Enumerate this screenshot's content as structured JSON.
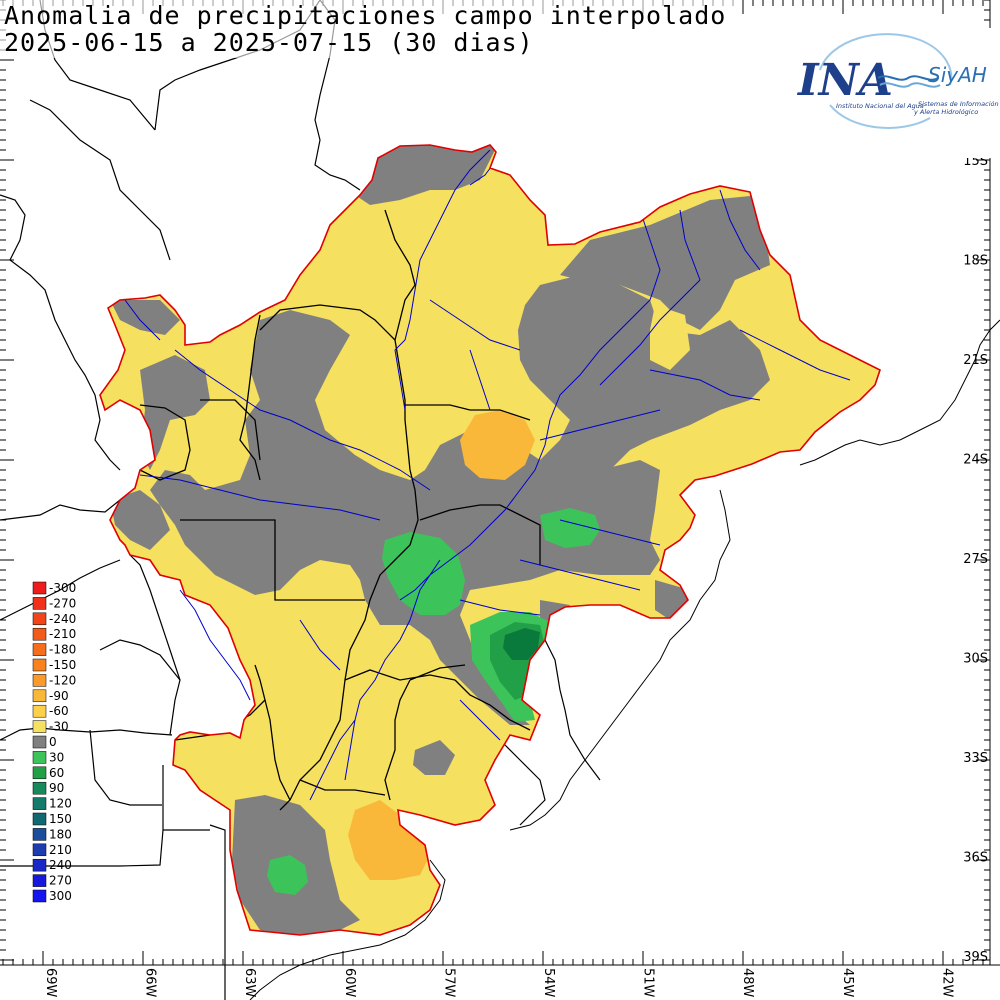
{
  "title": {
    "line1": "Anomalia de precipitaciones campo interpolado",
    "line2": "2025-06-15 a 2025-07-15 (30 dias)"
  },
  "logo": {
    "name": "INA",
    "tagline": "Instituto Nacional del Agua",
    "system": "SiyAH",
    "system_desc_1": "Sistemas de Información",
    "system_desc_2": "y Alerta Hidrológico"
  },
  "axes": {
    "lat_labels": [
      "15S",
      "18S",
      "21S",
      "24S",
      "27S",
      "30S",
      "33S",
      "36S",
      "39S"
    ],
    "lon_labels": [
      "69W",
      "66W",
      "63W",
      "60W",
      "57W",
      "54W",
      "51W",
      "48W",
      "45W",
      "42W"
    ]
  },
  "legend": {
    "entries": [
      {
        "label": "-300",
        "color": "#ee1c1c"
      },
      {
        "label": "-270",
        "color": "#f0301a"
      },
      {
        "label": "-240",
        "color": "#f24418"
      },
      {
        "label": "-210",
        "color": "#f45a18"
      },
      {
        "label": "-180",
        "color": "#f66e1c"
      },
      {
        "label": "-150",
        "color": "#f8821e"
      },
      {
        "label": "-120",
        "color": "#f99a2a"
      },
      {
        "label": "-90",
        "color": "#fab83a"
      },
      {
        "label": "-60",
        "color": "#fcd04a"
      },
      {
        "label": "-30",
        "color": "#f5e060"
      },
      {
        "label": "0",
        "color": "#808080"
      },
      {
        "label": "30",
        "color": "#3cc45a"
      },
      {
        "label": "60",
        "color": "#22a048"
      },
      {
        "label": "90",
        "color": "#168a5a"
      },
      {
        "label": "120",
        "color": "#147a6a"
      },
      {
        "label": "150",
        "color": "#106870"
      },
      {
        "label": "180",
        "color": "#1a4e9a"
      },
      {
        "label": "210",
        "color": "#1c3cb0"
      },
      {
        "label": "240",
        "color": "#1a28c8"
      },
      {
        "label": "270",
        "color": "#1818dc"
      },
      {
        "label": "300",
        "color": "#1414f0"
      }
    ]
  },
  "colors": {
    "near_normal": "#808080",
    "dry_light": "#f5e060",
    "dry_moderate": "#fab83a",
    "wet_light": "#3cc45a",
    "wet_moderate": "#22a048",
    "wet_strong": "#0a7a3c",
    "basin_outline": "#e00000",
    "rivers": "#0000cc",
    "borders": "#000000"
  }
}
